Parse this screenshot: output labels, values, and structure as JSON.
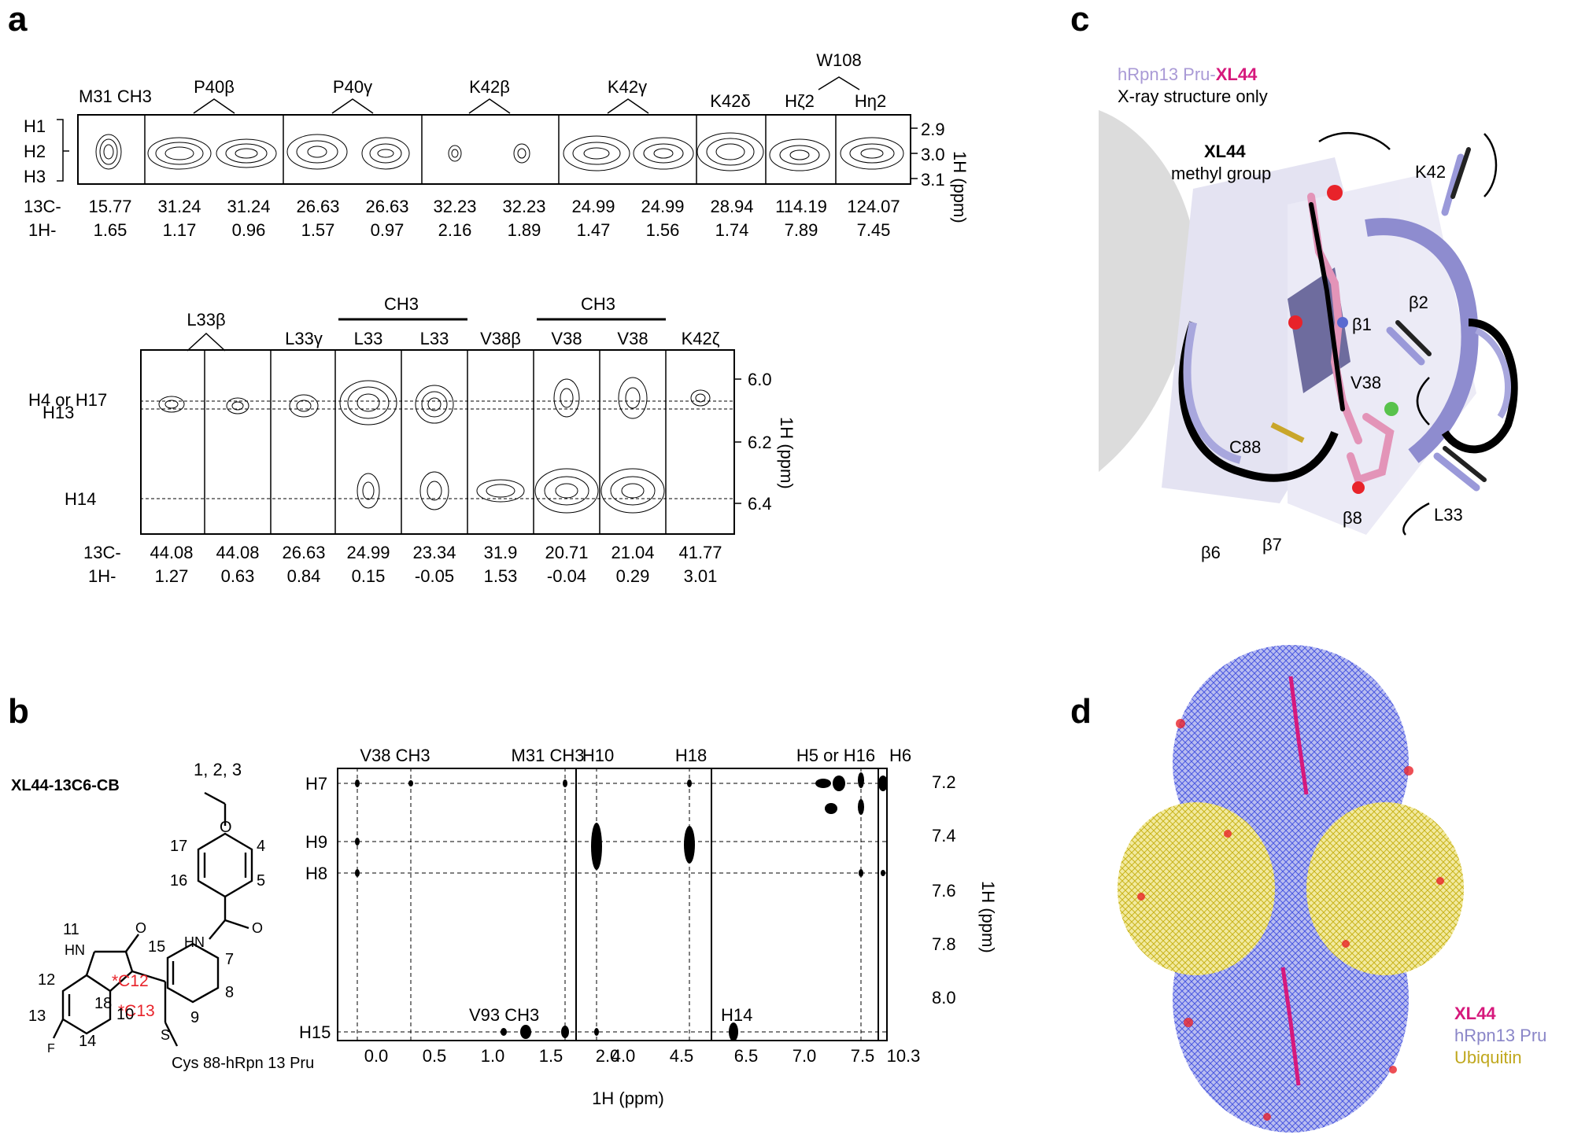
{
  "panels": {
    "a": "a",
    "b": "b",
    "c": "c",
    "d": "d"
  },
  "a_top": {
    "row_labels": [
      "H1",
      "H2",
      "H3"
    ],
    "col_labels": [
      "M31 CH3",
      "P40β",
      "P40γ",
      "K42β",
      "K42γ",
      "K42δ",
      "Hζ2",
      "Hη2"
    ],
    "group_label_w108": "W108",
    "axis_title": "1H (ppm)",
    "ticks": [
      "2.9",
      "3.0",
      "3.1"
    ],
    "c13_prefix": "13C-",
    "h1_prefix": "1H-",
    "c13_values": [
      "15.77",
      "31.24",
      "31.24",
      "26.63",
      "26.63",
      "32.23",
      "32.23",
      "24.99",
      "24.99",
      "28.94",
      "114.19",
      "124.07"
    ],
    "h1_values": [
      "1.65",
      "1.17",
      "0.96",
      "1.57",
      "0.97",
      "2.16",
      "1.89",
      "1.47",
      "1.56",
      "1.74",
      "7.89",
      "7.45"
    ]
  },
  "a_bottom": {
    "row_labels": [
      "H4 or H17",
      "H13",
      "H14"
    ],
    "col_labels": [
      "L33β",
      "L33γ",
      "L33",
      "L33",
      "V38β",
      "V38",
      "V38",
      "K42ζ"
    ],
    "ch3_label_1": "CH3",
    "ch3_label_2": "CH3",
    "axis_title": "1H (ppm)",
    "ticks": [
      "6.0",
      "6.2",
      "6.4"
    ],
    "c13_prefix": "13C-",
    "h1_prefix": "1H-",
    "c13_values": [
      "44.08",
      "44.08",
      "26.63",
      "24.99",
      "23.34",
      "31.9",
      "20.71",
      "21.04",
      "41.77"
    ],
    "h1_values": [
      "1.27",
      "0.63",
      "0.84",
      "0.15",
      "-0.05",
      "1.53",
      "-0.04",
      "0.29",
      "3.01"
    ]
  },
  "b": {
    "compound_label": "XL44-13C6-CB",
    "atoms": {
      "methyl": "1, 2, 3",
      "o": "O",
      "n17": "17",
      "n4": "4",
      "n16": "16",
      "n5": "5",
      "hn": "HN",
      "o2": "O",
      "n11": "11",
      "hn2": "HN",
      "o3": "O",
      "n15": "15",
      "n7": "7",
      "n12": "12",
      "c12": "*C12",
      "c13": "*C13",
      "n18": "18",
      "n10": "10",
      "n8": "8",
      "n9": "9",
      "n13": "13",
      "n14": "14",
      "f": "F",
      "s": "S",
      "cys": "Cys 88-hRpn 13 Pru",
      "c13_mark": "13"
    },
    "spectrum": {
      "top_labels": [
        "V38 CH3",
        "M31 CH3",
        "H10",
        "H18",
        "H5 or H16",
        "H6"
      ],
      "row_labels": [
        "H7",
        "H9",
        "H8",
        "H15"
      ],
      "inner_labels": [
        "V93 CH3",
        "H14"
      ],
      "x_ticks": [
        "0.0",
        "0.5",
        "1.0",
        "1.5",
        "2.0",
        "4.0",
        "4.5",
        "6.5",
        "7.0",
        "7.5",
        "10.3"
      ],
      "y_ticks": [
        "7.2",
        "7.4",
        "7.6",
        "7.8",
        "8.0"
      ],
      "x_title": "1H (ppm)",
      "y_title": "1H (ppm)"
    }
  },
  "c": {
    "legend_line1_a": "hRpn13 Pru-",
    "legend_line1_b": "XL44",
    "legend_line2": "X-ray structure only",
    "xl44": "XL44",
    "methyl": "methyl group",
    "labels": [
      "K42",
      "β2",
      "β1",
      "V38",
      "C88",
      "L33",
      "β6",
      "β7",
      "β8"
    ]
  },
  "d": {
    "legend": [
      "XL44",
      "hRpn13 Pru",
      "Ubiquitin"
    ]
  },
  "colors": {
    "magenta": "#d6197c",
    "lavender": "#a99ad6",
    "periwinkle": "#8a86c8",
    "olive": "#c0a81e",
    "red_label": "#e8232a"
  }
}
